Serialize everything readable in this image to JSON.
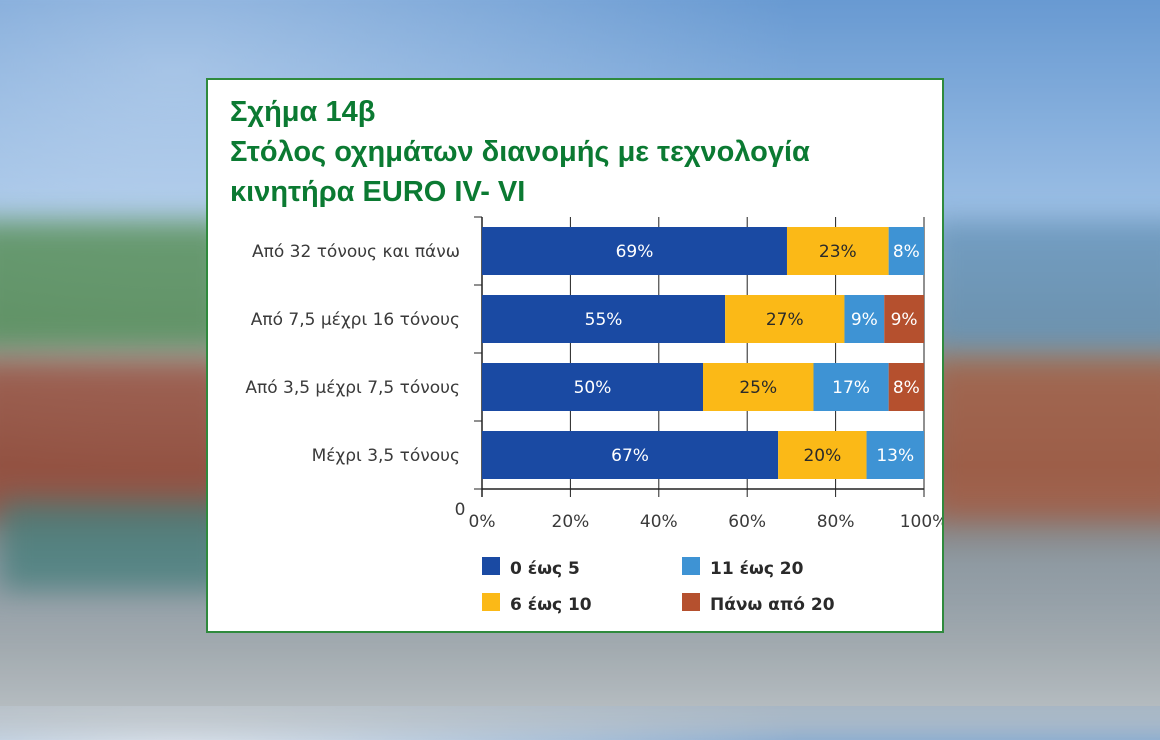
{
  "title": {
    "line1": "Σχήμα 14β",
    "line2": "Στόλος οχημάτων διανομής με τεχνολογία",
    "line3": "κινητήρα EURO IV- VI"
  },
  "colors": {
    "frame": "#2f8a3d",
    "title": "#0b7a32",
    "text": "#3a3a3a"
  },
  "chart_data": {
    "type": "bar",
    "orientation": "horizontal",
    "stacked": true,
    "categories": [
      "Από 32 τόνους και πάνω",
      "Από 7,5 μέχρι 16 τόνους",
      "Από 3,5 μέχρι 7,5 τόνους",
      "Μέχρι 3,5 τόνους"
    ],
    "series": [
      {
        "name": "0 έως 5",
        "color": "#1a4aa3",
        "values": [
          69,
          55,
          50,
          67
        ],
        "labels": [
          "69%",
          "55%",
          "50%",
          "67%"
        ]
      },
      {
        "name": "6 έως 10",
        "color": "#fbb917",
        "values": [
          23,
          27,
          25,
          20
        ],
        "labels": [
          "23%",
          "27%",
          "25%",
          "20%"
        ]
      },
      {
        "name": "11 έως 20",
        "color": "#3e93d4",
        "values": [
          8,
          9,
          17,
          13
        ],
        "labels": [
          "8%",
          "9%",
          "17%",
          "13%"
        ]
      },
      {
        "name": "Πάνω από 20",
        "color": "#b5502e",
        "values": [
          0,
          9,
          8,
          0
        ],
        "labels": [
          "",
          "9%",
          "8%",
          ""
        ]
      }
    ],
    "xlim": [
      0,
      100
    ],
    "xticks": [
      "0%",
      "20%",
      "40%",
      "60%",
      "80%",
      "100%"
    ],
    "origin_label": "0",
    "legend_position": "bottom",
    "grid": true
  }
}
